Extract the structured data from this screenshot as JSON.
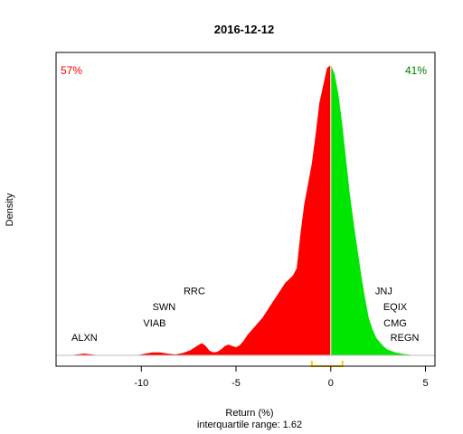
{
  "chart_data": {
    "type": "area",
    "title": "2016-12-12",
    "xlabel": "Return (%)",
    "ylabel": "Density",
    "subtitle": "interquartile range: 1.62",
    "xlim": [
      -14.5,
      5.5
    ],
    "ylim": [
      0,
      1.0
    ],
    "x_ticks": [
      -10,
      -5,
      0,
      5
    ],
    "x_tick_labels": [
      "-10",
      "-5",
      "0",
      "5"
    ],
    "split_at": 0,
    "negative_pct_label": "57%",
    "positive_pct_label": "41%",
    "colors": {
      "negative": "#ff0000",
      "positive": "#00e600",
      "iqr": "#ffcc00",
      "axis": "#000000",
      "baseline": "#bebebe",
      "split_line": "#ffffff"
    },
    "iqr": [
      -1.0,
      0.62
    ],
    "series": [
      {
        "x": [
          -13.8,
          -13.4,
          -13.0,
          -12.6,
          -12.2,
          -11.8,
          -11.0,
          -10.2,
          -9.8,
          -9.4,
          -9.0,
          -8.6,
          -8.2,
          -7.8,
          -7.4,
          -7.0,
          -6.8,
          -6.6,
          -6.4,
          -6.2,
          -6.0,
          -5.8,
          -5.6,
          -5.4,
          -5.2,
          -5.0,
          -4.8,
          -4.6,
          -4.4,
          -4.0,
          -3.6,
          -3.2,
          -2.8,
          -2.4,
          -2.0,
          -1.8,
          -1.6,
          -1.4,
          -1.2,
          -1.0,
          -0.8,
          -0.6,
          -0.4,
          -0.2,
          0.0,
          0.2,
          0.4,
          0.6,
          0.8,
          1.0,
          1.2,
          1.4,
          1.6,
          1.8,
          2.0,
          2.2,
          2.4,
          2.6,
          2.8,
          3.0,
          3.4,
          3.8,
          4.2,
          4.5
        ],
        "y": [
          0.0,
          0.003,
          0.006,
          0.003,
          0.0,
          0.0,
          0.0,
          0.001,
          0.006,
          0.01,
          0.01,
          0.006,
          0.003,
          0.008,
          0.018,
          0.035,
          0.042,
          0.032,
          0.016,
          0.01,
          0.012,
          0.02,
          0.032,
          0.037,
          0.032,
          0.028,
          0.035,
          0.05,
          0.07,
          0.1,
          0.13,
          0.17,
          0.21,
          0.25,
          0.275,
          0.3,
          0.42,
          0.52,
          0.59,
          0.66,
          0.76,
          0.87,
          0.93,
          0.99,
          1.0,
          0.97,
          0.9,
          0.8,
          0.68,
          0.56,
          0.46,
          0.37,
          0.28,
          0.2,
          0.13,
          0.09,
          0.06,
          0.045,
          0.03,
          0.02,
          0.01,
          0.005,
          0.002,
          0.0
        ]
      }
    ],
    "annotations": [
      {
        "text": "ALXN",
        "x": -13.0,
        "y": 0.05
      },
      {
        "text": "VIAB",
        "x": -9.3,
        "y": 0.1
      },
      {
        "text": "SWN",
        "x": -8.8,
        "y": 0.155
      },
      {
        "text": "RRC",
        "x": -7.2,
        "y": 0.21
      },
      {
        "text": "JNJ",
        "x": 2.8,
        "y": 0.21
      },
      {
        "text": "EQIX",
        "x": 3.4,
        "y": 0.155
      },
      {
        "text": "CMG",
        "x": 3.4,
        "y": 0.1
      },
      {
        "text": "REGN",
        "x": 3.9,
        "y": 0.05
      }
    ]
  }
}
